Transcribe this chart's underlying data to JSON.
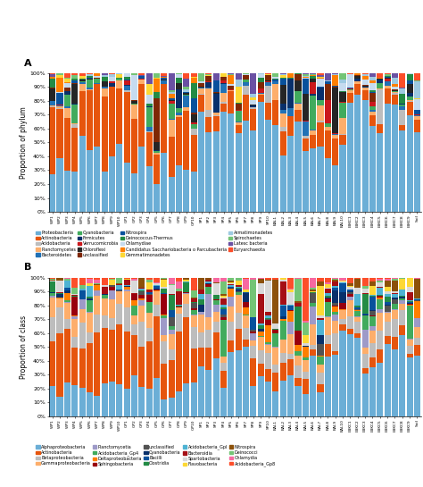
{
  "panel_A": {
    "title": "A",
    "ylabel": "Proportion of phylum",
    "legend": [
      {
        "label": "Proteobacteria",
        "color": "#6BAED6"
      },
      {
        "label": "Actinobacteria",
        "color": "#E6550D"
      },
      {
        "label": "Acidobacteria",
        "color": "#BDBDBD"
      },
      {
        "label": "Planctomycetes",
        "color": "#FDAE6B"
      },
      {
        "label": "Bacteroidetes",
        "color": "#2171B5"
      },
      {
        "label": "Cyanobacteria",
        "color": "#41AB5D"
      },
      {
        "label": "Firmicutes",
        "color": "#08306B"
      },
      {
        "label": "Verrucomicrobia",
        "color": "#CB181D"
      },
      {
        "label": "Chloroflexi",
        "color": "#252525"
      },
      {
        "label": "unclassified",
        "color": "#7F2704"
      },
      {
        "label": "Nitrospira",
        "color": "#08519C"
      },
      {
        "label": "Deinococcus-Thermus",
        "color": "#238B45"
      },
      {
        "label": "Chlamydiae",
        "color": "#C6DBEF"
      },
      {
        "label": "Candidatus Sacchariobacteria o Parcubacteria",
        "color": "#FF7F00"
      },
      {
        "label": "Gemmatimonadetes",
        "color": "#FDD835"
      },
      {
        "label": "Armatimonadetes",
        "color": "#9ECAE1"
      },
      {
        "label": "Spirochaetes",
        "color": "#74C476"
      },
      {
        "label": "Latesc bacteria",
        "color": "#6A51A3"
      },
      {
        "label": "Euryarchaeota",
        "color": "#FC4E2A"
      }
    ]
  },
  "panel_B": {
    "title": "B",
    "ylabel": "Proportion of class",
    "legend": [
      {
        "label": "Alphaproteobacteria",
        "color": "#6BAED6"
      },
      {
        "label": "Actinobacteria",
        "color": "#E6550D"
      },
      {
        "label": "Betaproteobacteria",
        "color": "#BDBDBD"
      },
      {
        "label": "Gammaproteobacteria",
        "color": "#FDAE6B"
      },
      {
        "label": "Planctomycetia",
        "color": "#9E9AC8"
      },
      {
        "label": "Acidobacteria_Gp4",
        "color": "#41AB5D"
      },
      {
        "label": "Deltaproteobacteria",
        "color": "#FF7F00"
      },
      {
        "label": "Sphingobacteria",
        "color": "#99000D"
      },
      {
        "label": "unclassified",
        "color": "#525252"
      },
      {
        "label": "Cyanobacteria",
        "color": "#08306B"
      },
      {
        "label": "Bacilli",
        "color": "#08519C"
      },
      {
        "label": "Clostridia",
        "color": "#238B45"
      },
      {
        "label": "Acidobacteria_GpI",
        "color": "#4EB3D3"
      },
      {
        "label": "Bacteroidia",
        "color": "#A50F15"
      },
      {
        "label": "Spartobacteria",
        "color": "#D9D9D9"
      },
      {
        "label": "Flavobacteria",
        "color": "#FDD835"
      },
      {
        "label": "Nitrospira",
        "color": "#8C510A"
      },
      {
        "label": "Deinococci",
        "color": "#74C476"
      },
      {
        "label": "Chlamydia",
        "color": "#F768A1"
      },
      {
        "label": "Acidobacteria_Gp8",
        "color": "#FC4E2A"
      }
    ]
  },
  "sample_labels": [
    "WP1",
    "WP2",
    "WP3",
    "WP4",
    "WP5",
    "WP6",
    "WP7",
    "WP8",
    "WP9",
    "WP10",
    "GP1",
    "GP2",
    "GP3",
    "GP4",
    "GP5",
    "GP6",
    "GP7",
    "GP8",
    "GP9",
    "GP10",
    "SP1",
    "SP2",
    "SP3",
    "SP4",
    "SP5",
    "SP6",
    "SP7",
    "SP8",
    "SP9",
    "SP10",
    "BAL1",
    "BAL2",
    "BAL3",
    "BAL4",
    "BAL5",
    "BAL6",
    "BAL7",
    "BAL8",
    "BAL9",
    "BAL10",
    "LBKC1",
    "LBKC2",
    "LBKC3",
    "LBKC4",
    "LBKC5",
    "LBKC6",
    "LBKC7",
    "LBKC8",
    "LBKC9",
    "Soil"
  ],
  "figsize": [
    4.74,
    5.45
  ],
  "dpi": 100
}
